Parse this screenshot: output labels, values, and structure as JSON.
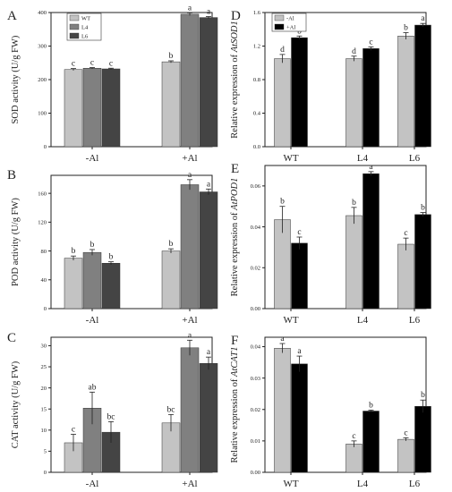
{
  "colors": {
    "wt": "#c3c3c3",
    "l4": "#808080",
    "l6": "#444444",
    "minus_al": "#c3c3c3",
    "plus_al": "#000000"
  },
  "chart_data": [
    {
      "id": "A",
      "type": "bar",
      "letter": "A",
      "ylabel": "SOD activity (U/g FW)",
      "categories": [
        "-Al",
        "+Al"
      ],
      "ylim": [
        0,
        400
      ],
      "yticks": [
        0,
        100,
        200,
        300,
        400
      ],
      "legend": {
        "placement": "top-left",
        "entries": [
          "WT",
          "L4",
          "L6"
        ]
      },
      "series": [
        {
          "name": "WT",
          "values": [
            230,
            253
          ],
          "errors": [
            3,
            3
          ],
          "labels": [
            "c",
            "b"
          ]
        },
        {
          "name": "L4",
          "values": [
            234,
            395
          ],
          "errors": [
            2,
            4
          ],
          "labels": [
            "c",
            "a"
          ]
        },
        {
          "name": "L6",
          "values": [
            232,
            385
          ],
          "errors": [
            2,
            3
          ],
          "labels": [
            "c",
            "a"
          ]
        }
      ]
    },
    {
      "id": "B",
      "type": "bar",
      "letter": "B",
      "ylabel": "POD activity (U/g FW)",
      "categories": [
        "-Al",
        "+Al"
      ],
      "ylim": [
        0,
        185
      ],
      "yticks": [
        0,
        40,
        80,
        120,
        160
      ],
      "series": [
        {
          "name": "WT",
          "values": [
            70,
            80
          ],
          "errors": [
            3,
            3
          ],
          "labels": [
            "b",
            "b"
          ]
        },
        {
          "name": "L4",
          "values": [
            78,
            172
          ],
          "errors": [
            4,
            7
          ],
          "labels": [
            "b",
            "a"
          ]
        },
        {
          "name": "L6",
          "values": [
            63,
            162
          ],
          "errors": [
            2,
            4
          ],
          "labels": [
            "b",
            "a"
          ]
        }
      ]
    },
    {
      "id": "C",
      "type": "bar",
      "letter": "C",
      "ylabel": "CAT activity (U/g FW)",
      "categories": [
        "-Al",
        "+Al"
      ],
      "ylim": [
        0,
        32
      ],
      "yticks": [
        0,
        5,
        10,
        15,
        20,
        25,
        30
      ],
      "series": [
        {
          "name": "WT",
          "values": [
            7,
            11.7
          ],
          "errors": [
            2,
            2
          ],
          "labels": [
            "c",
            "bc"
          ]
        },
        {
          "name": "L4",
          "values": [
            15.2,
            29.5
          ],
          "errors": [
            3.8,
            1.8
          ],
          "labels": [
            "ab",
            "a"
          ]
        },
        {
          "name": "L6",
          "values": [
            9.5,
            25.8
          ],
          "errors": [
            2.5,
            1.5
          ],
          "labels": [
            "bc",
            "a"
          ]
        }
      ]
    },
    {
      "id": "D",
      "type": "bar",
      "letter": "D",
      "ylabel_prefix": "Relative expression of ",
      "ylabel_gene": "AtSOD1",
      "categories": [
        "WT",
        "L4",
        "L6"
      ],
      "ylim": [
        0,
        1.6
      ],
      "yticks": [
        "0.0",
        "0.4",
        "0.8",
        "1.2",
        "1.6"
      ],
      "legend": {
        "placement": "top-left",
        "entries": [
          "-Al",
          "+Al"
        ]
      },
      "series": [
        {
          "name": "-Al",
          "values": [
            1.05,
            1.05,
            1.32
          ],
          "errors": [
            0.05,
            0.03,
            0.04
          ],
          "labels": [
            "d",
            "d",
            "b"
          ]
        },
        {
          "name": "+Al",
          "values": [
            1.3,
            1.17,
            1.45
          ],
          "errors": [
            0.02,
            0.02,
            0.02
          ],
          "labels": [
            "b",
            "c",
            "a"
          ]
        }
      ]
    },
    {
      "id": "E",
      "type": "bar",
      "letter": "E",
      "ylabel_prefix": "Relative expression of ",
      "ylabel_gene": "AtPOD1",
      "categories": [
        "WT",
        "L4",
        "L6"
      ],
      "ylim": [
        0,
        0.07
      ],
      "yticks": [
        "0.00",
        "0.02",
        "0.04",
        "0.06"
      ],
      "series": [
        {
          "name": "-Al",
          "values": [
            0.0435,
            0.0455,
            0.0315
          ],
          "errors": [
            0.0065,
            0.004,
            0.003
          ],
          "labels": [
            "b",
            "b",
            "c"
          ]
        },
        {
          "name": "+Al",
          "values": [
            0.032,
            0.066,
            0.046
          ],
          "errors": [
            0.003,
            0.001,
            0.001
          ],
          "labels": [
            "c",
            "a",
            "b"
          ]
        }
      ]
    },
    {
      "id": "F",
      "type": "bar",
      "letter": "F",
      "ylabel_prefix": "Relative expression of ",
      "ylabel_gene": "AtCAT1",
      "categories": [
        "WT",
        "L4",
        "L6"
      ],
      "ylim": [
        0,
        0.043
      ],
      "yticks": [
        "0.00",
        "0.01",
        "0.02",
        "0.03",
        "0.04"
      ],
      "series": [
        {
          "name": "-Al",
          "values": [
            0.0395,
            0.009,
            0.0105
          ],
          "errors": [
            0.0015,
            0.001,
            0.0005
          ],
          "labels": [
            "a",
            "c",
            "c"
          ]
        },
        {
          "name": "+Al",
          "values": [
            0.0345,
            0.0195,
            0.021
          ],
          "errors": [
            0.0025,
            0.0003,
            0.002
          ],
          "labels": [
            "a",
            "b",
            "b"
          ]
        }
      ]
    }
  ]
}
